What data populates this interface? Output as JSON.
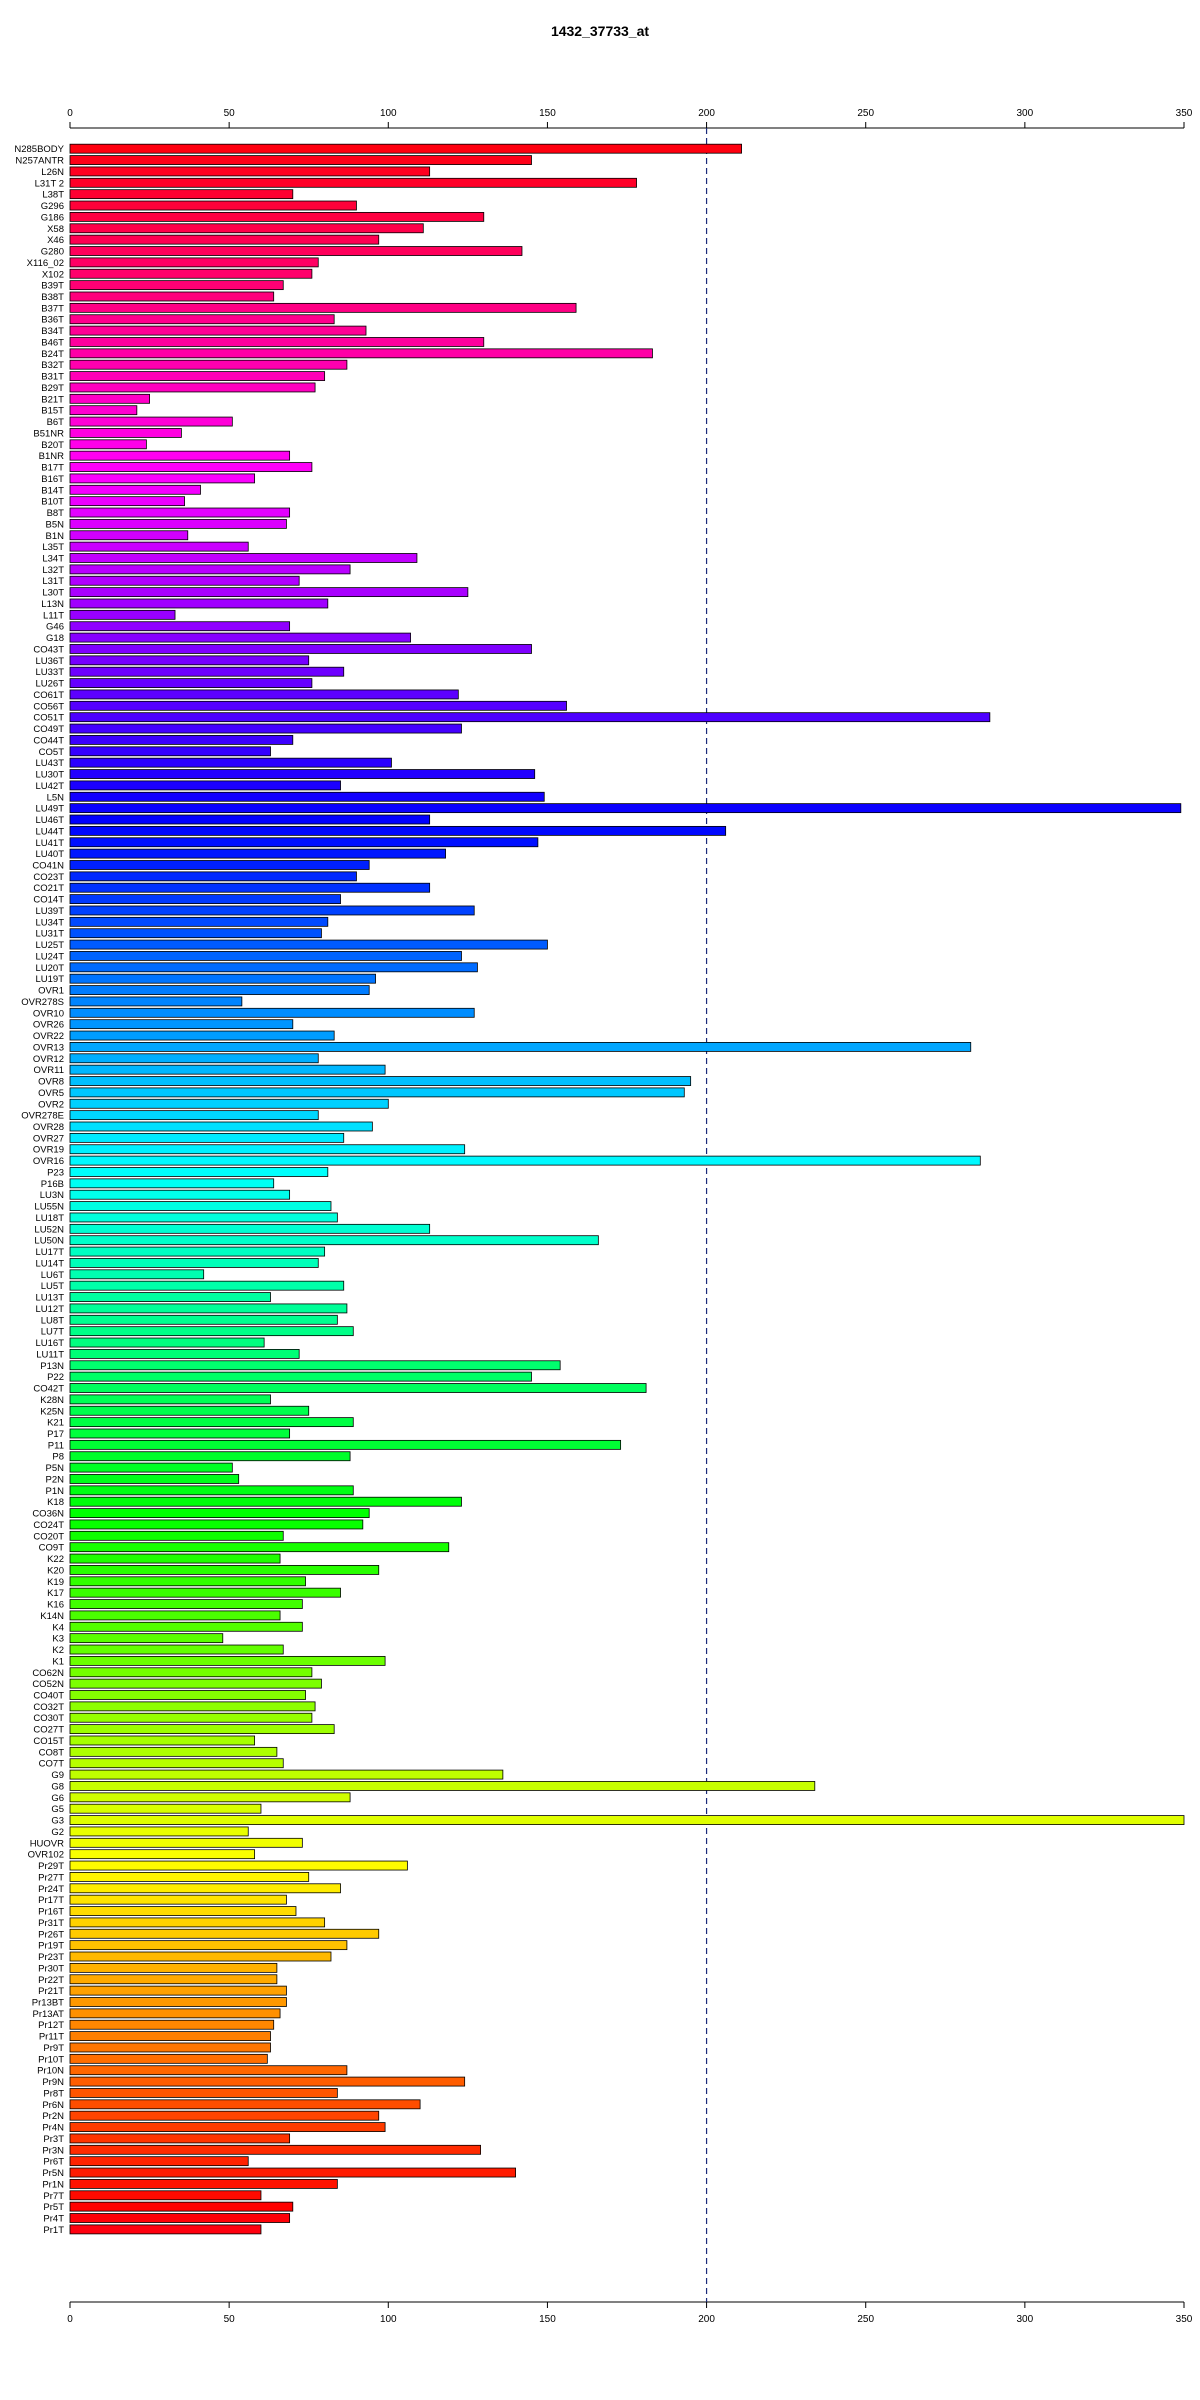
{
  "chart_data": {
    "type": "bar",
    "orientation": "horizontal",
    "title": "1432_37733_at",
    "xlabel": "",
    "ylabel": "",
    "xlim": [
      0,
      350
    ],
    "x_ticks": [
      0,
      50,
      100,
      150,
      200,
      250,
      300,
      350
    ],
    "x_tick_labels": [
      "0",
      "50",
      "100",
      "150",
      "200",
      "250",
      "300",
      "350"
    ],
    "reference_line": 200,
    "grid": false,
    "legend": "none",
    "bar_color_scheme": "rainbow",
    "categories": [
      "N285BODY",
      "N257ANTR",
      "L26N",
      "L31T 2",
      "L38T",
      "G296",
      "G186",
      "X58",
      "X46",
      "G280",
      "X116_02",
      "X102",
      "B39T",
      "B38T",
      "B37T",
      "B36T",
      "B34T",
      "B46T",
      "B24T",
      "B32T",
      "B31T",
      "B29T",
      "B21T",
      "B15T",
      "B6T",
      "B51NR",
      "B20T",
      "B1NR",
      "B17T",
      "B16T",
      "B14T",
      "B10T",
      "B8T",
      "B5N",
      "B1N",
      "L35T",
      "L34T",
      "L32T",
      "L31T",
      "L30T",
      "L13N",
      "L11T",
      "G46",
      "G18",
      "CO43T",
      "LU36T",
      "LU33T",
      "LU26T",
      "CO61T",
      "CO56T",
      "CO51T",
      "CO49T",
      "CO44T",
      "CO5T",
      "LU43T",
      "LU30T",
      "LU42T",
      "L5N",
      "LU49T",
      "LU46T",
      "LU44T",
      "LU41T",
      "LU40T",
      "CO41N",
      "CO23T",
      "CO21T",
      "CO14T",
      "LU39T",
      "LU34T",
      "LU31T",
      "LU25T",
      "LU24T",
      "LU20T",
      "LU19T",
      "OVR1",
      "OVR278S",
      "OVR10",
      "OVR26",
      "OVR22",
      "OVR13",
      "OVR12",
      "OVR11",
      "OVR8",
      "OVR5",
      "OVR2",
      "OVR278E",
      "OVR28",
      "OVR27",
      "OVR19",
      "OVR16",
      "P23",
      "P16B",
      "LU3N",
      "LU55N",
      "LU18T",
      "LU52N",
      "LU50N",
      "LU17T",
      "LU14T",
      "LU6T",
      "LU5T",
      "LU13T",
      "LU12T",
      "LU8T",
      "LU7T",
      "LU16T",
      "LU11T",
      "P13N",
      "P22",
      "CO42T",
      "K28N",
      "K25N",
      "K21",
      "P17",
      "P11",
      "P8",
      "P5N",
      "P2N",
      "P1N",
      "K18",
      "CO36N",
      "CO24T",
      "CO20T",
      "CO9T",
      "K22",
      "K20",
      "K19",
      "K17",
      "K16",
      "K14N",
      "K4",
      "K3",
      "K2",
      "K1",
      "CO62N",
      "CO52N",
      "CO40T",
      "CO32T",
      "CO30T",
      "CO27T",
      "CO15T",
      "CO8T",
      "CO7T",
      "G9",
      "G8",
      "G6",
      "G5",
      "G3",
      "G2",
      "HUOVR",
      "OVR102",
      "Pr29T",
      "Pr27T",
      "Pr24T",
      "Pr17T",
      "Pr16T",
      "Pr31T",
      "Pr26T",
      "Pr19T",
      "Pr23T",
      "Pr30T",
      "Pr22T",
      "Pr21T",
      "Pr13BT",
      "Pr13AT",
      "Pr12T",
      "Pr11T",
      "Pr9T",
      "Pr10T",
      "Pr10N",
      "Pr9N",
      "Pr8T",
      "Pr6N",
      "Pr2N",
      "Pr4N",
      "Pr3T",
      "Pr3N",
      "Pr6T",
      "Pr5N",
      "Pr1N",
      "Pr7T",
      "Pr5T",
      "Pr4T",
      "Pr1T"
    ],
    "values": [
      211,
      145,
      113,
      178,
      70,
      90,
      130,
      111,
      97,
      142,
      78,
      76,
      67,
      64,
      159,
      83,
      93,
      130,
      183,
      87,
      80,
      77,
      25,
      21,
      51,
      35,
      24,
      69,
      76,
      58,
      41,
      36,
      69,
      68,
      37,
      56,
      109,
      88,
      72,
      125,
      81,
      33,
      69,
      107,
      145,
      75,
      86,
      76,
      122,
      156,
      289,
      123,
      70,
      63,
      101,
      146,
      85,
      149,
      349,
      113,
      206,
      147,
      118,
      94,
      90,
      113,
      85,
      127,
      81,
      79,
      150,
      123,
      128,
      96,
      94,
      54,
      127,
      70,
      83,
      283,
      78,
      99,
      195,
      193,
      100,
      78,
      95,
      86,
      124,
      286,
      81,
      64,
      69,
      82,
      84,
      113,
      166,
      80,
      78,
      42,
      86,
      63,
      87,
      84,
      89,
      61,
      72,
      154,
      145,
      181,
      63,
      75,
      89,
      69,
      173,
      88,
      51,
      53,
      89,
      123,
      94,
      92,
      67,
      119,
      66,
      97,
      74,
      85,
      73,
      66,
      73,
      48,
      67,
      99,
      76,
      79,
      74,
      77,
      76,
      83,
      58,
      65,
      67,
      136,
      234,
      88,
      60,
      352,
      56,
      73,
      58,
      106,
      75,
      85,
      68,
      71,
      80,
      97,
      87,
      82,
      65,
      65,
      68,
      68,
      66,
      64,
      63,
      63,
      62,
      87,
      124,
      84,
      110,
      97,
      99,
      69,
      129,
      56,
      140,
      84,
      60,
      70,
      69,
      60
    ]
  }
}
